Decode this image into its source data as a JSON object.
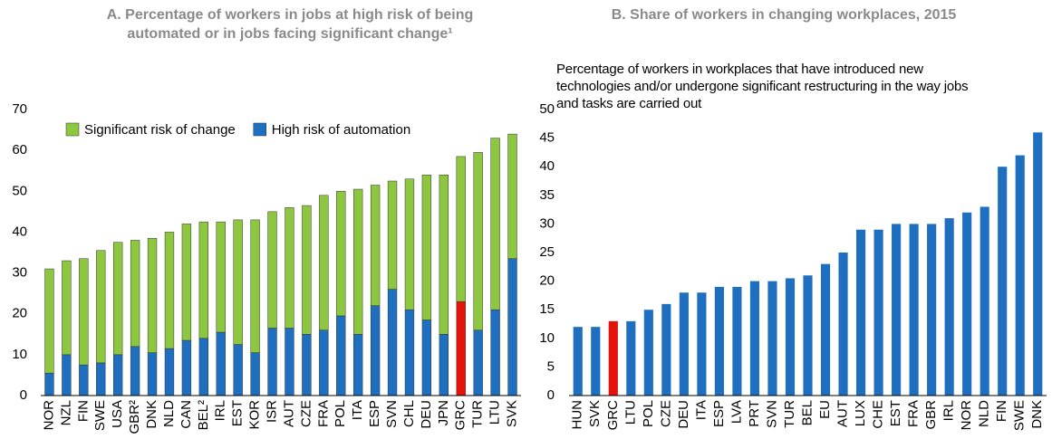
{
  "chart_data": [
    {
      "type": "stacked-bar",
      "title": "A. Percentage of workers in jobs at high risk of being automated or in jobs facing significant change¹",
      "categories": [
        "NOR",
        "NZL",
        "FIN",
        "SWE",
        "USA",
        "GBR²",
        "DNK",
        "NLD",
        "CAN",
        "BEL²",
        "IRL",
        "EST",
        "KOR",
        "ISR",
        "AUT",
        "CZE",
        "FRA",
        "POL",
        "ITA",
        "ESP",
        "SVN",
        "CHL",
        "DEU",
        "JPN",
        "GRC",
        "TUR",
        "LTU",
        "SVK"
      ],
      "series": [
        {
          "name": "Significant risk of change",
          "color": "#8dc63f",
          "values": [
            25.5,
            23,
            26,
            27.5,
            27.5,
            26,
            28,
            28.5,
            28.5,
            28.5,
            27,
            30.5,
            32.5,
            28.5,
            29.5,
            31.5,
            33,
            30.5,
            35.5,
            29.5,
            26.5,
            32,
            35.5,
            39,
            35.5,
            43.5,
            42,
            30.5
          ]
        },
        {
          "name": "High risk of automation",
          "color": "#1f6fc1",
          "colors": [
            "#1f6fc1",
            "#1f6fc1",
            "#1f6fc1",
            "#1f6fc1",
            "#1f6fc1",
            "#1f6fc1",
            "#1f6fc1",
            "#1f6fc1",
            "#1f6fc1",
            "#1f6fc1",
            "#1f6fc1",
            "#1f6fc1",
            "#1f6fc1",
            "#1f6fc1",
            "#1f6fc1",
            "#1f6fc1",
            "#1f6fc1",
            "#1f6fc1",
            "#1f6fc1",
            "#1f6fc1",
            "#1f6fc1",
            "#1f6fc1",
            "#1f6fc1",
            "#1f6fc1",
            "#e3120b",
            "#1f6fc1",
            "#1f6fc1",
            "#1f6fc1"
          ],
          "values": [
            5.5,
            10,
            7.5,
            8,
            10,
            12,
            10.5,
            11.5,
            13.5,
            14,
            15.5,
            12.5,
            10.5,
            16.5,
            16.5,
            15,
            16,
            19.5,
            15,
            22,
            26,
            21,
            18.5,
            15,
            23,
            16,
            21,
            33.5
          ]
        }
      ],
      "ylim": [
        0,
        70
      ],
      "yticks": [
        0,
        10,
        20,
        30,
        40,
        50,
        60,
        70
      ]
    },
    {
      "type": "bar",
      "title": "B. Share of workers in changing workplaces, 2015",
      "subtitle": "Percentage of workers in workplaces that have introduced new technologies and/or undergone significant restructuring in the way jobs and tasks are carried out",
      "categories": [
        "HUN",
        "SVK",
        "GRC",
        "LTU",
        "POL",
        "CZE",
        "DEU",
        "ITA",
        "ESP",
        "LVA",
        "PRT",
        "SVN",
        "TUR",
        "BEL",
        "EU",
        "AUT",
        "LUX",
        "CHE",
        "EST",
        "FRA",
        "GBR",
        "IRL",
        "NOR",
        "NLD",
        "FIN",
        "SWE",
        "DNK"
      ],
      "values": [
        12,
        12,
        13,
        13,
        15,
        16,
        18,
        18,
        19,
        19,
        20,
        20,
        20.5,
        21,
        23,
        25,
        29,
        29,
        30,
        30,
        30,
        31,
        32,
        33,
        40,
        42,
        46
      ],
      "colors": [
        "#1f6fc1",
        "#1f6fc1",
        "#e3120b",
        "#1f6fc1",
        "#1f6fc1",
        "#1f6fc1",
        "#1f6fc1",
        "#1f6fc1",
        "#1f6fc1",
        "#1f6fc1",
        "#1f6fc1",
        "#1f6fc1",
        "#1f6fc1",
        "#1f6fc1",
        "#1f6fc1",
        "#1f6fc1",
        "#1f6fc1",
        "#1f6fc1",
        "#1f6fc1",
        "#1f6fc1",
        "#1f6fc1",
        "#1f6fc1",
        "#1f6fc1",
        "#1f6fc1",
        "#1f6fc1",
        "#1f6fc1",
        "#1f6fc1"
      ],
      "ylim": [
        0,
        50
      ],
      "yticks": [
        0,
        5,
        10,
        15,
        20,
        25,
        30,
        35,
        40,
        45,
        50
      ]
    }
  ]
}
